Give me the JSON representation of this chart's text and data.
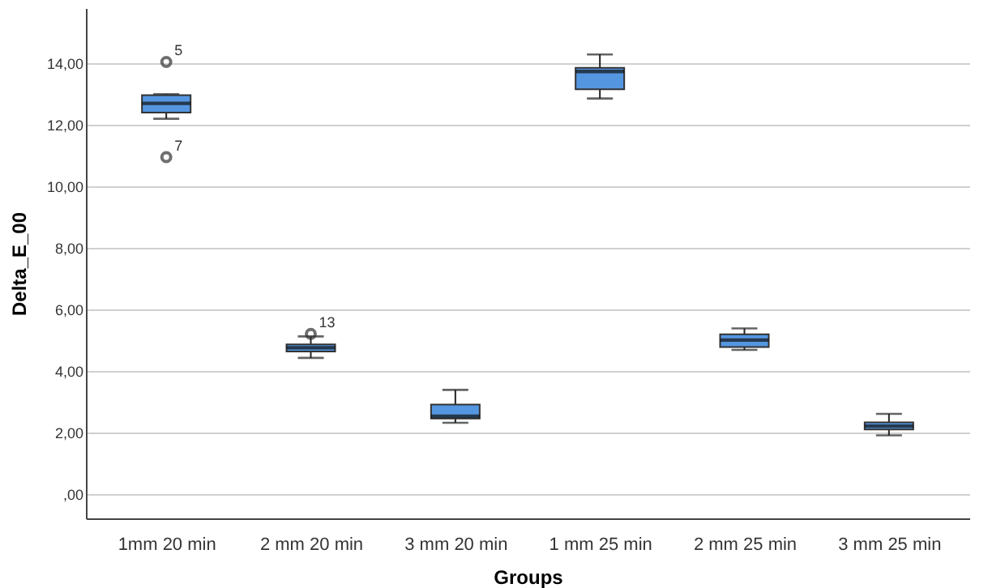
{
  "chart_data": {
    "type": "box",
    "xlabel": "Groups",
    "ylabel": "Delta_E_00",
    "categories": [
      "1mm 20 min",
      "2 mm 20 min",
      "3 mm 20 min",
      "1 mm 25 min",
      "2 mm 25 min",
      "3 mm 25 min"
    ],
    "color": "#5596e0",
    "boxes": [
      {
        "low": 12.2,
        "q1": 12.4,
        "median": 12.7,
        "q3": 12.97,
        "high": 13.0,
        "outliers": [
          14.05,
          10.95
        ]
      },
      {
        "low": 4.42,
        "q1": 4.63,
        "median": 4.75,
        "q3": 4.86,
        "high": 5.12,
        "outliers": [
          5.2
        ]
      },
      {
        "low": 2.31,
        "q1": 2.45,
        "median": 2.52,
        "q3": 2.9,
        "high": 3.38
      },
      {
        "low": 12.86,
        "q1": 13.16,
        "median": 13.74,
        "q3": 13.86,
        "high": 14.29
      },
      {
        "low": 4.68,
        "q1": 4.77,
        "median": 5.0,
        "q3": 5.19,
        "high": 5.38
      },
      {
        "low": 1.9,
        "q1": 2.09,
        "median": 2.2,
        "q3": 2.32,
        "high": 2.6
      }
    ],
    "ylim": [
      -0.8,
      15.8
    ],
    "yticks": [
      {
        "value": 0,
        "label": ",00"
      },
      {
        "value": 2,
        "label": "2,00"
      },
      {
        "value": 4,
        "label": "4,00"
      },
      {
        "value": 6,
        "label": "6,00"
      },
      {
        "value": 8,
        "label": "8,00"
      },
      {
        "value": 10,
        "label": "10,00"
      },
      {
        "value": 12,
        "label": "12,00"
      },
      {
        "value": 14,
        "label": "14,00"
      }
    ],
    "grid": "y",
    "annotations": [
      "5",
      "7",
      "13"
    ]
  }
}
